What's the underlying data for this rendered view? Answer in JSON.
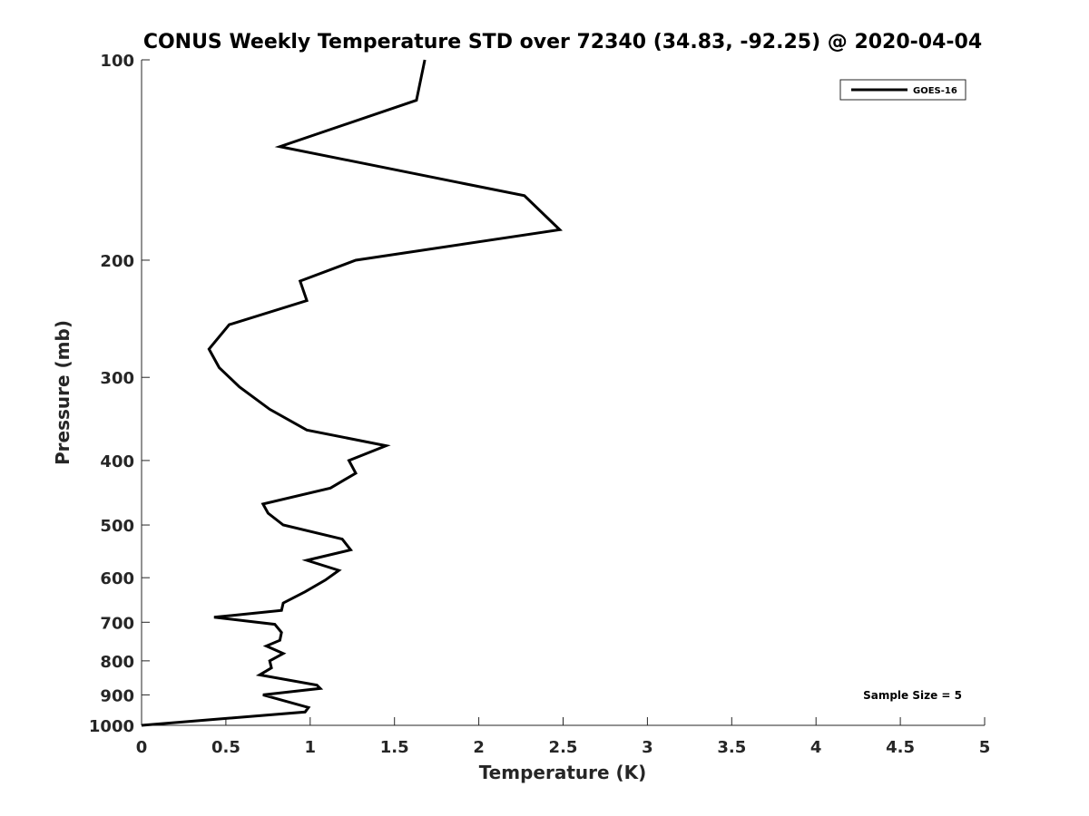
{
  "chart_data": {
    "type": "line",
    "title": "CONUS Weekly Temperature STD over 72340 (34.83, -92.25) @ 2020-04-04",
    "xlabel": "Temperature (K)",
    "ylabel": "Pressure (mb)",
    "xlim": [
      0,
      5
    ],
    "ylim": [
      100,
      1000
    ],
    "y_scale": "log",
    "y_reversed": true,
    "x_ticks": [
      "0",
      "0.5",
      "1",
      "1.5",
      "2",
      "2.5",
      "3",
      "3.5",
      "4",
      "4.5",
      "5"
    ],
    "y_ticks": [
      "100",
      "200",
      "300",
      "400",
      "500",
      "600",
      "700",
      "800",
      "900",
      "1000"
    ],
    "grid": false,
    "legend_position": "top-right",
    "annotation": "Sample Size = 5",
    "series": [
      {
        "name": "GOES-16",
        "color": "#000000",
        "points": [
          [
            1.68,
            100
          ],
          [
            1.63,
            115
          ],
          [
            0.82,
            135
          ],
          [
            2.27,
            160
          ],
          [
            2.48,
            180
          ],
          [
            1.27,
            200
          ],
          [
            0.94,
            215
          ],
          [
            0.98,
            230
          ],
          [
            0.52,
            250
          ],
          [
            0.4,
            272
          ],
          [
            0.46,
            290
          ],
          [
            0.58,
            310
          ],
          [
            0.76,
            335
          ],
          [
            0.98,
            360
          ],
          [
            1.45,
            380
          ],
          [
            1.23,
            400
          ],
          [
            1.27,
            418
          ],
          [
            1.12,
            440
          ],
          [
            0.72,
            465
          ],
          [
            0.75,
            480
          ],
          [
            0.84,
            500
          ],
          [
            1.19,
            525
          ],
          [
            1.24,
            545
          ],
          [
            0.98,
            565
          ],
          [
            1.17,
            585
          ],
          [
            1.09,
            605
          ],
          [
            0.97,
            630
          ],
          [
            0.84,
            655
          ],
          [
            0.83,
            672
          ],
          [
            0.43,
            688
          ],
          [
            0.79,
            705
          ],
          [
            0.83,
            725
          ],
          [
            0.82,
            745
          ],
          [
            0.74,
            760
          ],
          [
            0.84,
            780
          ],
          [
            0.76,
            800
          ],
          [
            0.77,
            820
          ],
          [
            0.7,
            840
          ],
          [
            1.04,
            870
          ],
          [
            1.06,
            880
          ],
          [
            0.72,
            900
          ],
          [
            0.99,
            940
          ],
          [
            0.97,
            955
          ],
          [
            0.0,
            1000
          ]
        ]
      }
    ]
  }
}
